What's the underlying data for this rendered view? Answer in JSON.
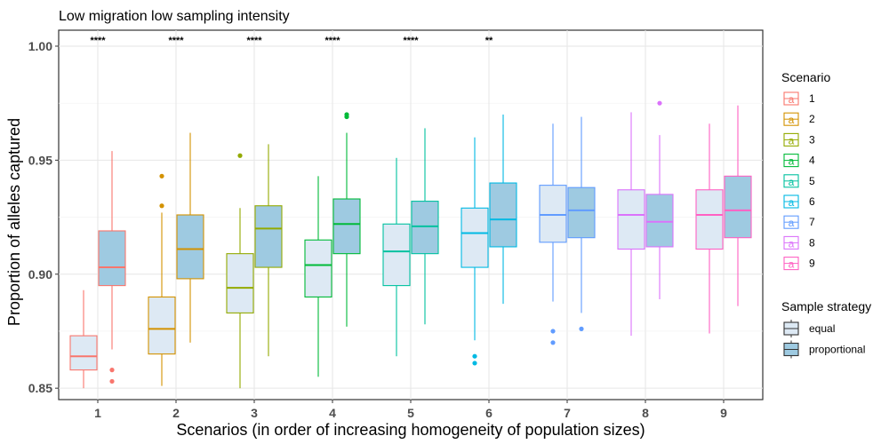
{
  "chart_data": {
    "type": "boxplot",
    "title": "Low migration low sampling intensity",
    "xlabel": "Scenarios (in order of increasing homogeneity of population sizes)",
    "ylabel": "Proportion of alleles captured",
    "ylim": [
      0.845,
      1.007
    ],
    "yticks": [
      "0.85",
      "0.90",
      "0.95",
      "1.00"
    ],
    "ytick_values": [
      0.85,
      0.9,
      0.95,
      1.0
    ],
    "grid": true,
    "legend_position": "right",
    "categories": [
      "1",
      "2",
      "3",
      "4",
      "5",
      "6",
      "7",
      "8",
      "9"
    ],
    "colors": [
      "#F8766D",
      "#D39200",
      "#93AA00",
      "#00BA38",
      "#00C19F",
      "#00B9E3",
      "#619CFF",
      "#DB72FB",
      "#FF61C3"
    ],
    "strategy_fills": {
      "equal": "#dde9f4",
      "proportional": "#9ecae1"
    },
    "significance": [
      "****",
      "****",
      "****",
      "****",
      "****",
      "**",
      "",
      "",
      ""
    ],
    "legend": {
      "scenario_title": "Scenario",
      "scenario_items": [
        "1",
        "2",
        "3",
        "4",
        "5",
        "6",
        "7",
        "8",
        "9"
      ],
      "strategy_title": "Sample strategy",
      "strategy_items": [
        "equal",
        "proportional"
      ],
      "glyph": "a"
    },
    "series": [
      {
        "name": "equal",
        "boxes": [
          {
            "min": 0.85,
            "q1": 0.858,
            "median": 0.864,
            "q3": 0.873,
            "max": 0.893,
            "outliers": []
          },
          {
            "min": 0.851,
            "q1": 0.865,
            "median": 0.876,
            "q3": 0.89,
            "max": 0.927,
            "outliers": [
              0.943,
              0.93
            ]
          },
          {
            "min": 0.85,
            "q1": 0.883,
            "median": 0.894,
            "q3": 0.909,
            "max": 0.929,
            "outliers": [
              0.952
            ]
          },
          {
            "min": 0.855,
            "q1": 0.89,
            "median": 0.904,
            "q3": 0.915,
            "max": 0.943,
            "outliers": []
          },
          {
            "min": 0.864,
            "q1": 0.895,
            "median": 0.91,
            "q3": 0.922,
            "max": 0.951,
            "outliers": []
          },
          {
            "min": 0.871,
            "q1": 0.903,
            "median": 0.918,
            "q3": 0.929,
            "max": 0.96,
            "outliers": [
              0.864,
              0.861
            ]
          },
          {
            "min": 0.888,
            "q1": 0.914,
            "median": 0.926,
            "q3": 0.939,
            "max": 0.966,
            "outliers": [
              0.875,
              0.87
            ]
          },
          {
            "min": 0.873,
            "q1": 0.911,
            "median": 0.926,
            "q3": 0.937,
            "max": 0.971,
            "outliers": []
          },
          {
            "min": 0.874,
            "q1": 0.911,
            "median": 0.926,
            "q3": 0.937,
            "max": 0.966,
            "outliers": []
          }
        ]
      },
      {
        "name": "proportional",
        "boxes": [
          {
            "min": 0.867,
            "q1": 0.895,
            "median": 0.903,
            "q3": 0.919,
            "max": 0.954,
            "outliers": [
              0.858,
              0.853
            ]
          },
          {
            "min": 0.87,
            "q1": 0.898,
            "median": 0.911,
            "q3": 0.926,
            "max": 0.962,
            "outliers": []
          },
          {
            "min": 0.864,
            "q1": 0.903,
            "median": 0.92,
            "q3": 0.93,
            "max": 0.957,
            "outliers": []
          },
          {
            "min": 0.877,
            "q1": 0.909,
            "median": 0.922,
            "q3": 0.933,
            "max": 0.962,
            "outliers": [
              0.97,
              0.969
            ]
          },
          {
            "min": 0.878,
            "q1": 0.909,
            "median": 0.921,
            "q3": 0.932,
            "max": 0.964,
            "outliers": []
          },
          {
            "min": 0.887,
            "q1": 0.912,
            "median": 0.924,
            "q3": 0.94,
            "max": 0.97,
            "outliers": []
          },
          {
            "min": 0.883,
            "q1": 0.916,
            "median": 0.928,
            "q3": 0.938,
            "max": 0.969,
            "outliers": [
              0.876
            ]
          },
          {
            "min": 0.889,
            "q1": 0.912,
            "median": 0.923,
            "q3": 0.935,
            "max": 0.961,
            "outliers": [
              0.975
            ]
          },
          {
            "min": 0.886,
            "q1": 0.916,
            "median": 0.928,
            "q3": 0.943,
            "max": 0.974,
            "outliers": []
          }
        ]
      }
    ]
  }
}
